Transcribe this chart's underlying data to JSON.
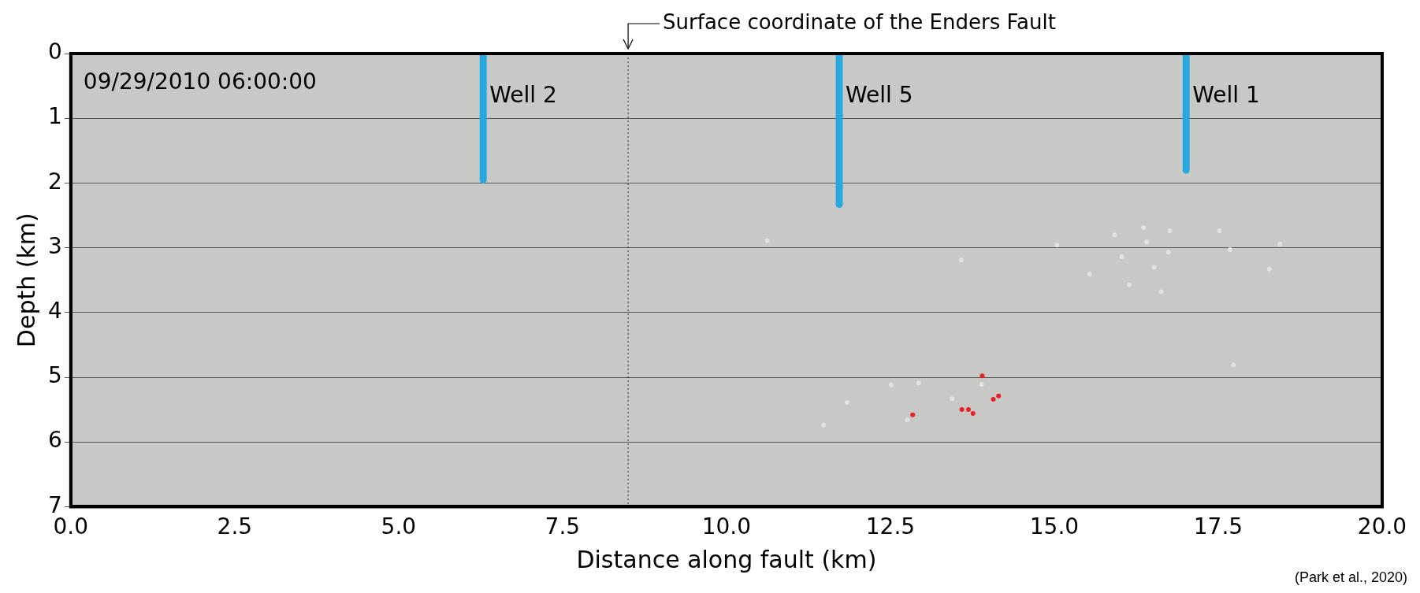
{
  "chart_data": {
    "type": "scatter",
    "xlabel": "Distance along fault (km)",
    "ylabel": "Depth (km)",
    "xlim": [
      0,
      20
    ],
    "xticks": [
      {
        "value": 0,
        "label": "0.0"
      },
      {
        "value": 2.5,
        "label": "2.5"
      },
      {
        "value": 5,
        "label": "5.0"
      },
      {
        "value": 7.5,
        "label": "7.5"
      },
      {
        "value": 10,
        "label": "10.0"
      },
      {
        "value": 12.5,
        "label": "12.5"
      },
      {
        "value": 15,
        "label": "15.0"
      },
      {
        "value": 17.5,
        "label": "17.5"
      },
      {
        "value": 20,
        "label": "20.0"
      }
    ],
    "ylim": [
      7,
      0
    ],
    "yticks": [
      0,
      1,
      2,
      3,
      4,
      5,
      6,
      7
    ],
    "grid": "y",
    "legend": false,
    "ref_lines": [
      {
        "axis": "x",
        "value": 8.5,
        "label": "Surface coordinate of the Enders Fault",
        "line_style": "dotted",
        "color": "#333333"
      }
    ],
    "annotations": [
      "09/29/2010 06:00:00",
      "(Park et al., 2020)"
    ],
    "series": [
      {
        "type": "line",
        "name": "Well 2",
        "color": "#29a8e0",
        "x": [
          6.29,
          6.29
        ],
        "values": [
          0,
          1.95
        ]
      },
      {
        "type": "line",
        "name": "Well 5",
        "color": "#29a8e0",
        "x": [
          11.72,
          11.72
        ],
        "values": [
          0,
          2.33
        ]
      },
      {
        "type": "line",
        "name": "Well 1",
        "color": "#29a8e0",
        "x": [
          17.01,
          17.01
        ],
        "values": [
          0,
          1.8
        ]
      },
      {
        "marker": "circle",
        "color": "#e2e2e2",
        "x": [
          15.92,
          16.03,
          16.14,
          16.41,
          16.52,
          16.63,
          16.36,
          16.74,
          15.54,
          16.76,
          17.52,
          17.68,
          18.28,
          18.44,
          13.58,
          15.04,
          17.73,
          12.93,
          11.48,
          13.89,
          13.44,
          12.51,
          12.76,
          11.84,
          10.62
        ],
        "values": [
          2.8,
          3.14,
          3.57,
          2.91,
          3.3,
          3.68,
          2.69,
          3.07,
          3.41,
          2.74,
          2.74,
          3.03,
          3.33,
          2.94,
          3.19,
          2.96,
          4.81,
          5.09,
          5.74,
          5.11,
          5.33,
          5.12,
          5.66,
          5.39,
          2.89
        ]
      },
      {
        "marker": "circle",
        "color": "#e8202a",
        "x": [
          12.84,
          13.59,
          13.69,
          13.76,
          14.07,
          14.15,
          13.9
        ],
        "values": [
          5.58,
          5.5,
          5.5,
          5.56,
          5.34,
          5.29,
          4.98
        ]
      }
    ]
  }
}
